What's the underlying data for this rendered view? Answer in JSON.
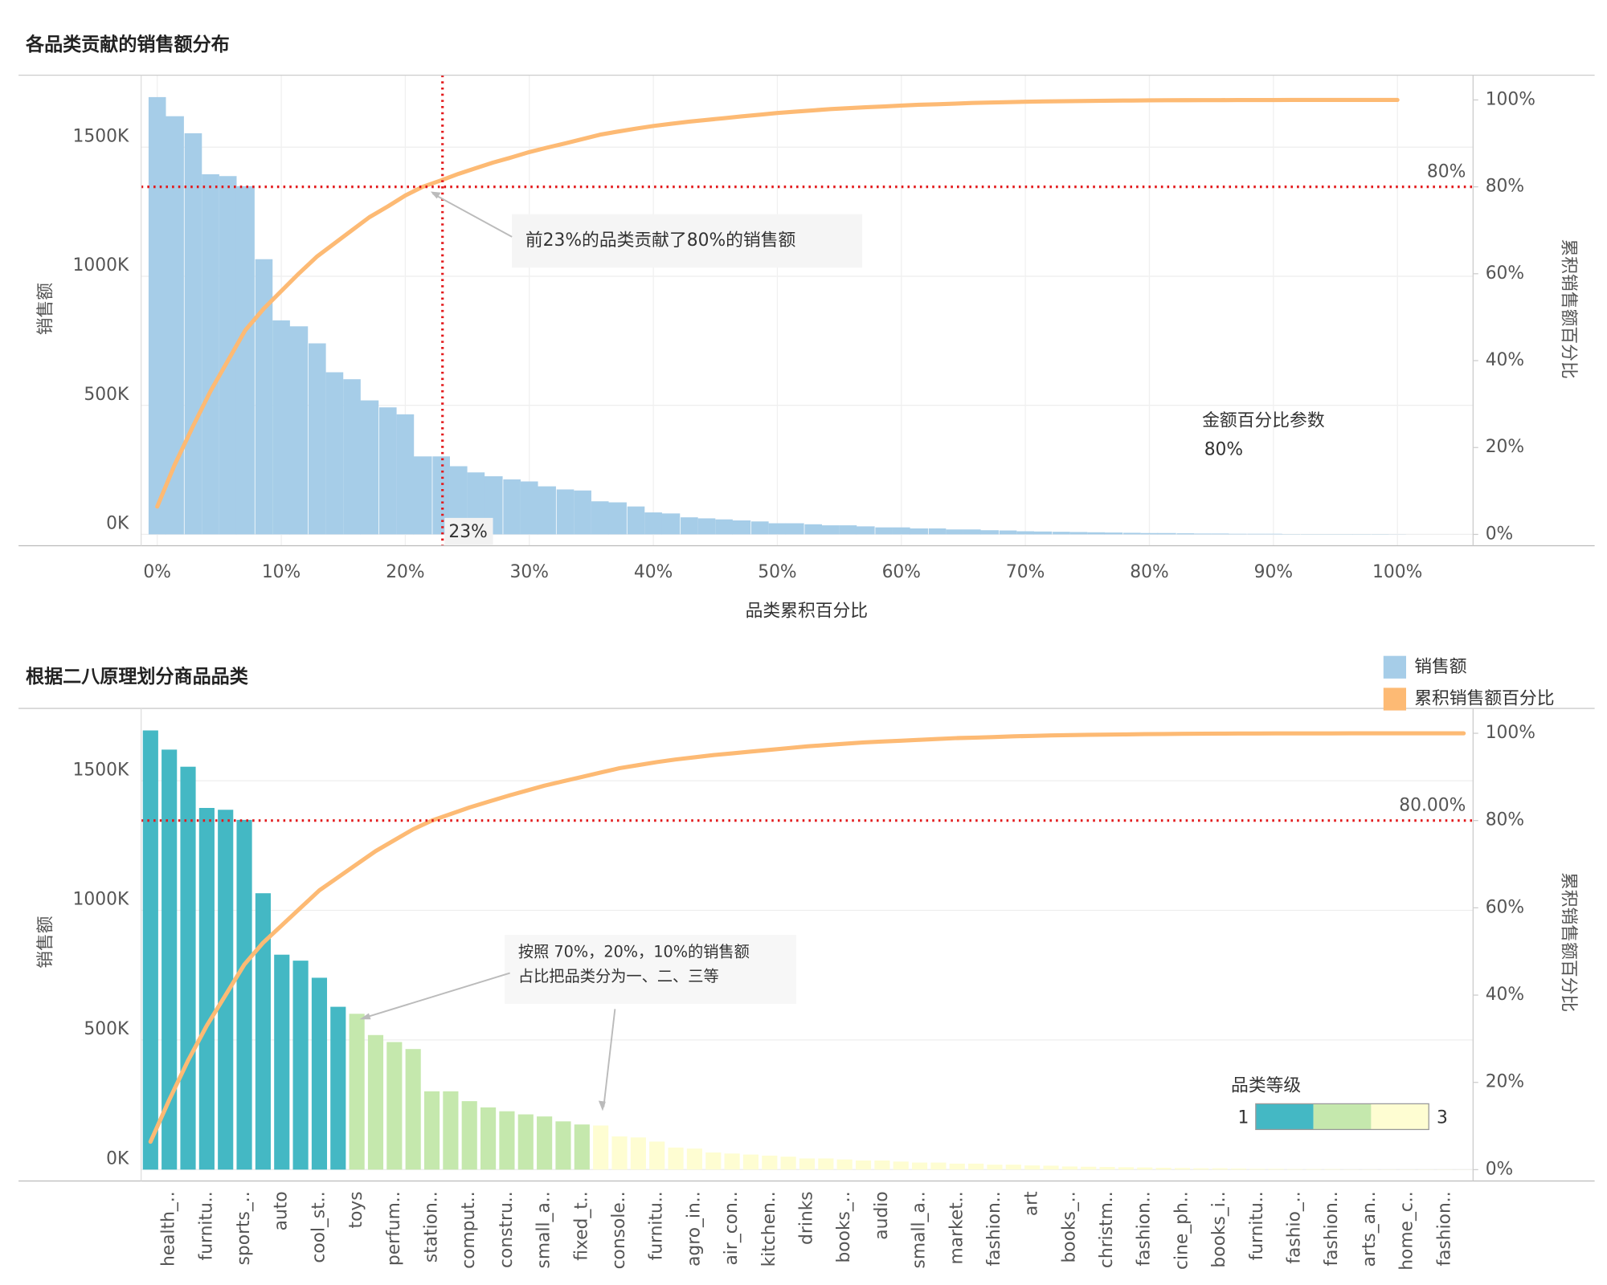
{
  "chart_data": [
    {
      "type": "bar",
      "title": "各品类贡献的销售额分布",
      "y_label": "销售额",
      "y2_label": "累积销售额百分比",
      "x_label": "品类累积百分比",
      "x": [
        0,
        1.4,
        2.9,
        4.3,
        5.7,
        7.1,
        8.6,
        10,
        11.4,
        12.9,
        14.3,
        15.7,
        17.1,
        18.6,
        20,
        21.4,
        22.9,
        24.3,
        25.7,
        27.1,
        28.6,
        30,
        31.4,
        32.9,
        34.3,
        35.7,
        37.1,
        38.6,
        40,
        41.4,
        42.9,
        44.3,
        45.7,
        47.1,
        48.6,
        50,
        51.4,
        52.9,
        54.3,
        55.7,
        57.1,
        58.6,
        60,
        61.4,
        62.9,
        64.3,
        65.7,
        67.1,
        68.6,
        70,
        71.4,
        72.9,
        74.3,
        75.7,
        77.1,
        78.6,
        80,
        81.4,
        82.9,
        84.3,
        85.7,
        87.1,
        88.6,
        90,
        91.4,
        92.9,
        94.3,
        95.7,
        97.1,
        98.6,
        100
      ],
      "series": [
        {
          "color": "#a6cde8",
          "values": [
            1694,
            1620,
            1554,
            1395,
            1388,
            1349,
            1066,
            829,
            806,
            740,
            628,
            601,
            519,
            492,
            465,
            302,
            302,
            264,
            240,
            225,
            213,
            205,
            186,
            174,
            170,
            128,
            124,
            108,
            85,
            81,
            66,
            62,
            58,
            54,
            50,
            43,
            43,
            39,
            35,
            35,
            31,
            27,
            27,
            23,
            23,
            19,
            19,
            16,
            15,
            12,
            11,
            10,
            9,
            8,
            7,
            6,
            5,
            5,
            4,
            3,
            3,
            2,
            2,
            2,
            1,
            1,
            1,
            1,
            1,
            1,
            0.5
          ]
        },
        {
          "color": "#fdba74",
          "axis": "y2",
          "values": [
            6.4,
            16,
            25,
            33,
            40,
            47,
            52,
            56,
            60,
            64,
            67,
            70,
            73,
            75.5,
            78,
            80,
            81.5,
            83,
            84.3,
            85.6,
            86.8,
            88,
            89,
            90,
            91,
            92,
            92.7,
            93.4,
            94,
            94.5,
            95,
            95.4,
            95.8,
            96.2,
            96.6,
            97,
            97.3,
            97.6,
            97.9,
            98.1,
            98.3,
            98.5,
            98.7,
            98.9,
            99,
            99.15,
            99.3,
            99.4,
            99.5,
            99.58,
            99.65,
            99.7,
            99.75,
            99.8,
            99.84,
            99.87,
            99.9,
            99.92,
            99.94,
            99.95,
            99.96,
            99.97,
            99.98,
            99.98,
            99.99,
            99.99,
            99.99,
            100,
            100,
            100,
            100
          ]
        }
      ],
      "xlim": [
        -1.3,
        106.1
      ],
      "xticks": [
        {
          "value": 0,
          "label": "0%"
        },
        {
          "value": 10,
          "label": "10%"
        },
        {
          "value": 20,
          "label": "20%"
        },
        {
          "value": 30,
          "label": "30%"
        },
        {
          "value": 40,
          "label": "40%"
        },
        {
          "value": 50,
          "label": "50%"
        },
        {
          "value": 60,
          "label": "60%"
        },
        {
          "value": 70,
          "label": "70%"
        },
        {
          "value": 80,
          "label": "80%"
        },
        {
          "value": 90,
          "label": "90%"
        },
        {
          "value": 100,
          "label": "100%"
        }
      ],
      "ylim": [
        -44,
        1779
      ],
      "yticks": [
        {
          "value": 0,
          "label": "0K"
        },
        {
          "value": 500,
          "label": "500K"
        },
        {
          "value": 1000,
          "label": "1000K"
        },
        {
          "value": 1500,
          "label": "1500K"
        }
      ],
      "y2lim": [
        -2.6,
        105.7
      ],
      "y2ticks": [
        {
          "value": 0,
          "label": "0%"
        },
        {
          "value": 20,
          "label": "20%"
        },
        {
          "value": 40,
          "label": "40%"
        },
        {
          "value": 60,
          "label": "60%"
        },
        {
          "value": 80,
          "label": "80%"
        },
        {
          "value": 100,
          "label": "100%"
        }
      ],
      "grid": true,
      "reference_lines": [
        {
          "axis": "y2",
          "value": 80,
          "label": "80%"
        },
        {
          "axis": "x",
          "value": 23,
          "label": "23%"
        }
      ],
      "annotation": "前23%的品类贡献了80%的销售额",
      "parameter": {
        "title": "金额百分比参数",
        "value": 80,
        "label": "80%"
      }
    },
    {
      "type": "bar",
      "title": "根据二八原理划分商品品类",
      "y_label": "销售额",
      "y2_label": "累积销售额百分比",
      "categories": [
        null,
        "health_..",
        null,
        "furnitu..",
        null,
        "sports_..",
        null,
        "auto",
        null,
        "cool_st..",
        null,
        "toys",
        null,
        "perfum..",
        null,
        "station..",
        null,
        "comput..",
        null,
        "constru..",
        null,
        "small_a..",
        null,
        "fixed_t..",
        null,
        "console..",
        null,
        "furnitu..",
        null,
        "agro_in..",
        null,
        "air_con..",
        null,
        "kitchen..",
        null,
        "drinks",
        null,
        "books_..",
        null,
        "audio",
        null,
        "small_a..",
        null,
        "market..",
        null,
        "fashion..",
        null,
        "art",
        null,
        "books_..",
        null,
        "christm..",
        null,
        "fashion..",
        null,
        "cine_ph..",
        null,
        "books_i..",
        null,
        "furnitu..",
        null,
        "fashio_..",
        null,
        "fashion..",
        null,
        "arts_an..",
        null,
        "home_c..",
        null,
        "fashion..",
        null
      ],
      "series": [
        {
          "name": "销售额",
          "color": "#a6cde8",
          "values": [
            1694,
            1620,
            1554,
            1395,
            1388,
            1349,
            1066,
            829,
            806,
            740,
            628,
            601,
            519,
            492,
            465,
            302,
            302,
            264,
            240,
            225,
            213,
            205,
            186,
            174,
            170,
            128,
            124,
            108,
            85,
            81,
            66,
            62,
            58,
            54,
            50,
            43,
            43,
            39,
            35,
            35,
            31,
            27,
            27,
            23,
            23,
            19,
            19,
            16,
            15,
            12,
            11,
            10,
            9,
            8,
            7,
            6,
            5,
            5,
            4,
            3,
            3,
            2,
            2,
            2,
            1,
            1,
            1,
            1,
            1,
            1,
            0.5
          ]
        },
        {
          "name": "累积销售额百分比",
          "color": "#fdba74",
          "axis": "y2",
          "values": [
            6.4,
            16,
            25,
            33,
            40,
            47,
            52,
            56,
            60,
            64,
            67,
            70,
            73,
            75.5,
            78,
            80,
            81.5,
            83,
            84.3,
            85.6,
            86.8,
            88,
            89,
            90,
            91,
            92,
            92.7,
            93.4,
            94,
            94.5,
            95,
            95.4,
            95.8,
            96.2,
            96.6,
            97,
            97.3,
            97.6,
            97.9,
            98.1,
            98.3,
            98.5,
            98.7,
            98.9,
            99,
            99.15,
            99.3,
            99.4,
            99.5,
            99.58,
            99.65,
            99.7,
            99.75,
            99.8,
            99.84,
            99.87,
            99.9,
            99.92,
            99.94,
            99.95,
            99.96,
            99.97,
            99.98,
            99.98,
            99.99,
            99.99,
            99.99,
            100,
            100,
            100,
            100
          ]
        }
      ],
      "grades": [
        1,
        1,
        1,
        1,
        1,
        1,
        1,
        1,
        1,
        1,
        1,
        2,
        2,
        2,
        2,
        2,
        2,
        2,
        2,
        2,
        2,
        2,
        2,
        2,
        3,
        3,
        3,
        3,
        3,
        3,
        3,
        3,
        3,
        3,
        3,
        3,
        3,
        3,
        3,
        3,
        3,
        3,
        3,
        3,
        3,
        3,
        3,
        3,
        3,
        3,
        3,
        3,
        3,
        3,
        3,
        3,
        3,
        3,
        3,
        3,
        3,
        3,
        3,
        3,
        3,
        3,
        3,
        3,
        3,
        3,
        3
      ],
      "grade_legend": {
        "title": "品类等级",
        "min": 1,
        "max": 3,
        "colors": [
          "#44b8c4",
          "#c5e8ad",
          "#fefdd2"
        ]
      },
      "ylim": [
        -44,
        1779
      ],
      "yticks": [
        {
          "value": 0,
          "label": "0K"
        },
        {
          "value": 500,
          "label": "500K"
        },
        {
          "value": 1000,
          "label": "1000K"
        },
        {
          "value": 1500,
          "label": "1500K"
        }
      ],
      "y2lim": [
        -2.6,
        105.7
      ],
      "y2ticks": [
        {
          "value": 0,
          "label": "0%"
        },
        {
          "value": 20,
          "label": "20%"
        },
        {
          "value": 40,
          "label": "40%"
        },
        {
          "value": 60,
          "label": "60%"
        },
        {
          "value": 80,
          "label": "80%"
        },
        {
          "value": 100,
          "label": "100%"
        }
      ],
      "grid": true,
      "reference_lines": [
        {
          "axis": "y2",
          "value": 80,
          "label": "80.00%"
        }
      ],
      "annotation": [
        "按照 70%，20%，10%的销售额",
        "占比把品类分为一、二、三等"
      ]
    }
  ]
}
